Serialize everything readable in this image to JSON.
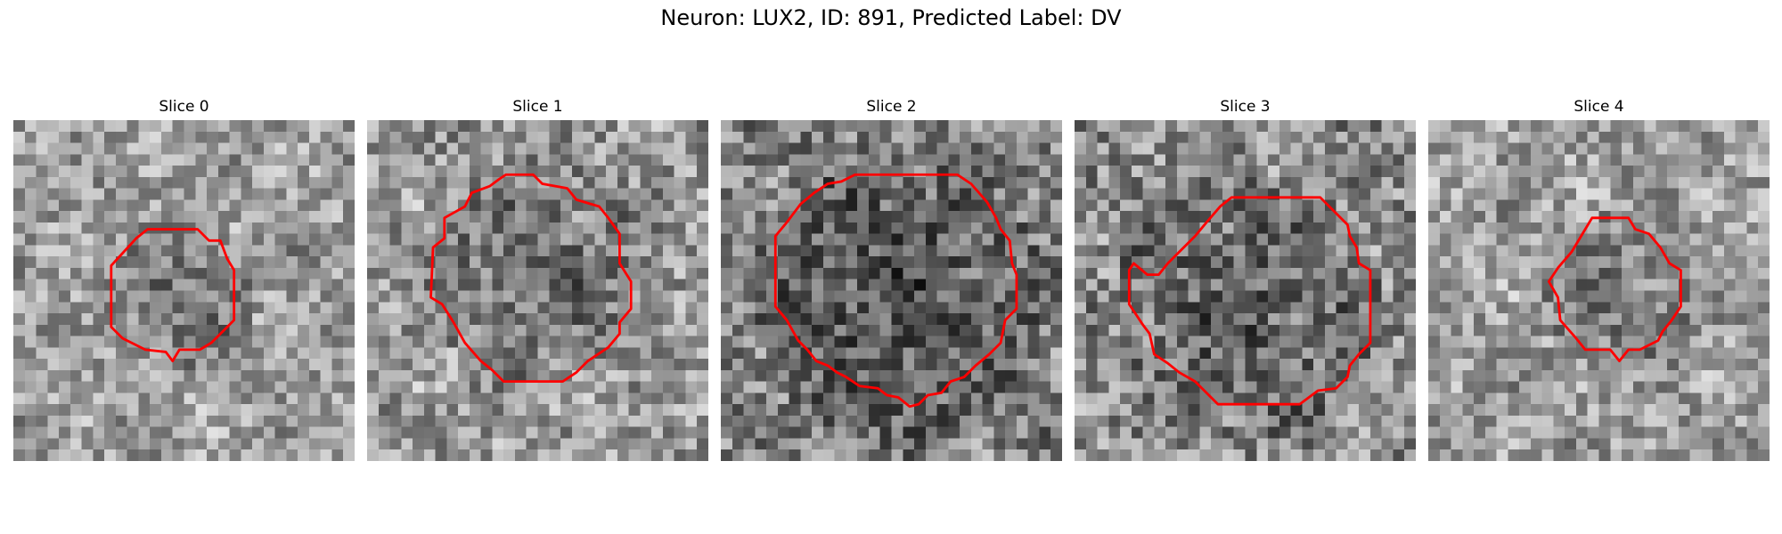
{
  "figure": {
    "title": "Neuron: LUX2, ID: 891, Predicted Label: DV",
    "colors": {
      "contour": "#ff0000",
      "background": "#ffffff"
    },
    "image_grid": "30x30 grayscale pixels per slice",
    "slices": [
      {
        "label": "Slice 0",
        "mean_brightness": 0.62,
        "contrast": 0.22,
        "texture_seed": 11
      },
      {
        "label": "Slice 1",
        "mean_brightness": 0.6,
        "contrast": 0.24,
        "texture_seed": 23
      },
      {
        "label": "Slice 2",
        "mean_brightness": 0.5,
        "contrast": 0.25,
        "texture_seed": 37
      },
      {
        "label": "Slice 3",
        "mean_brightness": 0.55,
        "contrast": 0.26,
        "texture_seed": 41
      },
      {
        "label": "Slice 4",
        "mean_brightness": 0.62,
        "contrast": 0.22,
        "texture_seed": 53
      }
    ]
  }
}
